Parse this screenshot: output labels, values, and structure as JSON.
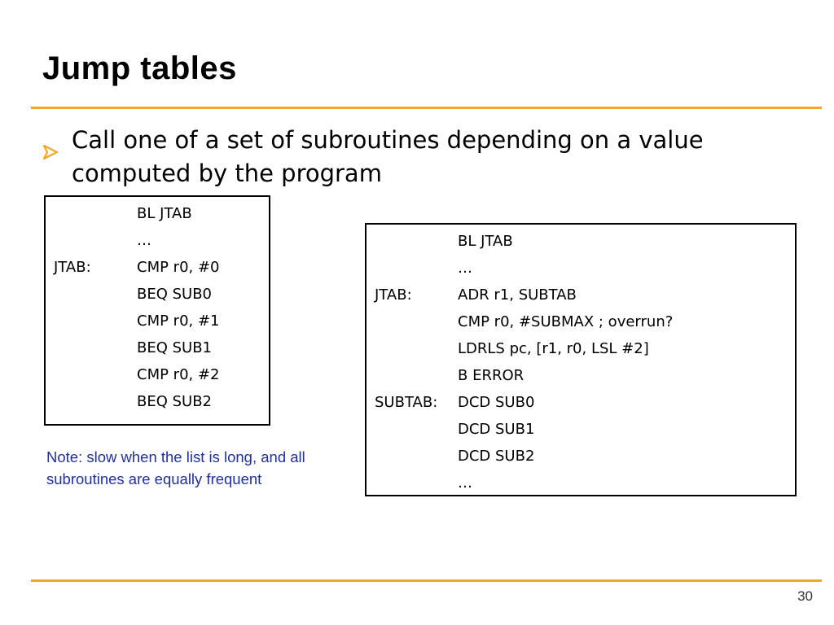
{
  "slide": {
    "title": "Jump tables",
    "bullet": "Call one of a set of subroutines depending on a value computed by the program",
    "note": "Note: slow when the list is long, and all subroutines are equally frequent",
    "page_number": "30"
  },
  "colors": {
    "accent_rule": "#f5a623",
    "bullet_arrow": "#f5a623",
    "note_text": "#1f2fa8"
  },
  "code_left": [
    {
      "label": "",
      "instr": "BL JTAB"
    },
    {
      "label": "",
      "instr": "…"
    },
    {
      "label": "JTAB:",
      "instr": "CMP r0, #0"
    },
    {
      "label": "",
      "instr": "BEQ SUB0"
    },
    {
      "label": "",
      "instr": "CMP r0, #1"
    },
    {
      "label": "",
      "instr": "BEQ SUB1"
    },
    {
      "label": "",
      "instr": "CMP r0, #2"
    },
    {
      "label": "",
      "instr": "BEQ SUB2"
    }
  ],
  "code_right": [
    {
      "label": "",
      "instr": "BL JTAB"
    },
    {
      "label": "",
      "instr": "…"
    },
    {
      "label": "JTAB:",
      "instr": "ADR r1, SUBTAB"
    },
    {
      "label": "",
      "instr": "CMP r0, #SUBMAX ; overrun?"
    },
    {
      "label": "",
      "instr": "LDRLS pc, [r1, r0, LSL #2]"
    },
    {
      "label": "",
      "instr": "B ERROR"
    },
    {
      "label": "SUBTAB:",
      "instr": "DCD SUB0"
    },
    {
      "label": "",
      "instr": "DCD SUB1"
    },
    {
      "label": "",
      "instr": "DCD SUB2"
    },
    {
      "label": "",
      "instr": "…"
    }
  ]
}
